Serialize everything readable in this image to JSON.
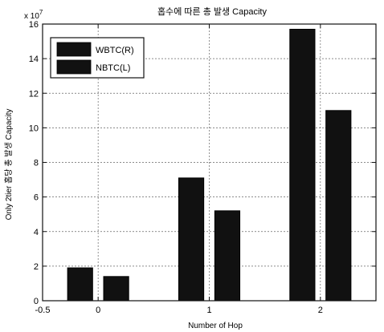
{
  "chart_data": {
    "type": "bar",
    "title": "홉수에 따른 총 발생 Capacity",
    "xlabel": "Number of Hop",
    "ylabel": "Only 2tier 홉당 총 발생 Capacity",
    "y_multiplier": "x 10",
    "y_exponent": "7",
    "categories": [
      0,
      1,
      2
    ],
    "xlim": [
      -0.5,
      2.5
    ],
    "ylim": [
      0,
      16
    ],
    "x_ticks": [
      -0.5,
      0,
      1,
      2
    ],
    "x_tick_labels": [
      "-0.5",
      "0",
      "1",
      "2"
    ],
    "y_ticks": [
      0,
      2,
      4,
      6,
      8,
      10,
      12,
      14,
      16
    ],
    "y_tick_labels": [
      "0",
      "2",
      "4",
      "6",
      "8",
      "10",
      "12",
      "14",
      "16"
    ],
    "grid": true,
    "legend_position": "top-left",
    "series": [
      {
        "name": "WBTC(R)",
        "values": [
          1.9,
          7.1,
          15.7
        ],
        "color": "#111111"
      },
      {
        "name": "NBTC(L)",
        "values": [
          1.4,
          5.2,
          11.0
        ],
        "color": "#111111"
      }
    ]
  }
}
